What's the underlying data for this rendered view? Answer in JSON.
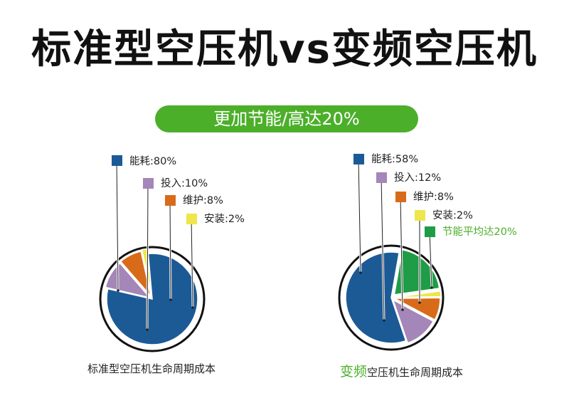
{
  "title": "标准型空压机vs变频空压机",
  "banner": "更加节能/高达20%",
  "captions": {
    "left": "标准型空压机生命周期成本",
    "right_highlight": "变频",
    "right_rest": "空压机生命周期成本"
  },
  "chart_data": [
    {
      "type": "pie",
      "title": "标准型空压机生命周期成本",
      "categories": [
        "能耗",
        "投入",
        "维护",
        "安装"
      ],
      "values": [
        80,
        10,
        8,
        2
      ],
      "labels": [
        "能耗:80%",
        "投入:10%",
        "维护:8%",
        "安装:2%"
      ],
      "colors": [
        "#1c5a96",
        "#a586b8",
        "#d86b19",
        "#eee64a"
      ]
    },
    {
      "type": "pie",
      "title": "变频空压机生命周期成本",
      "categories": [
        "能耗",
        "投入",
        "维护",
        "安装",
        "节能平均达"
      ],
      "values": [
        58,
        12,
        8,
        2,
        20
      ],
      "labels": [
        "能耗:58%",
        "投入:12%",
        "维护:8%",
        "安装:2%",
        "节能平均达20%"
      ],
      "colors": [
        "#1c5a96",
        "#a586b8",
        "#d86b19",
        "#eee64a",
        "#1f9c46"
      ],
      "highlight_color": "#4caf2a"
    }
  ]
}
